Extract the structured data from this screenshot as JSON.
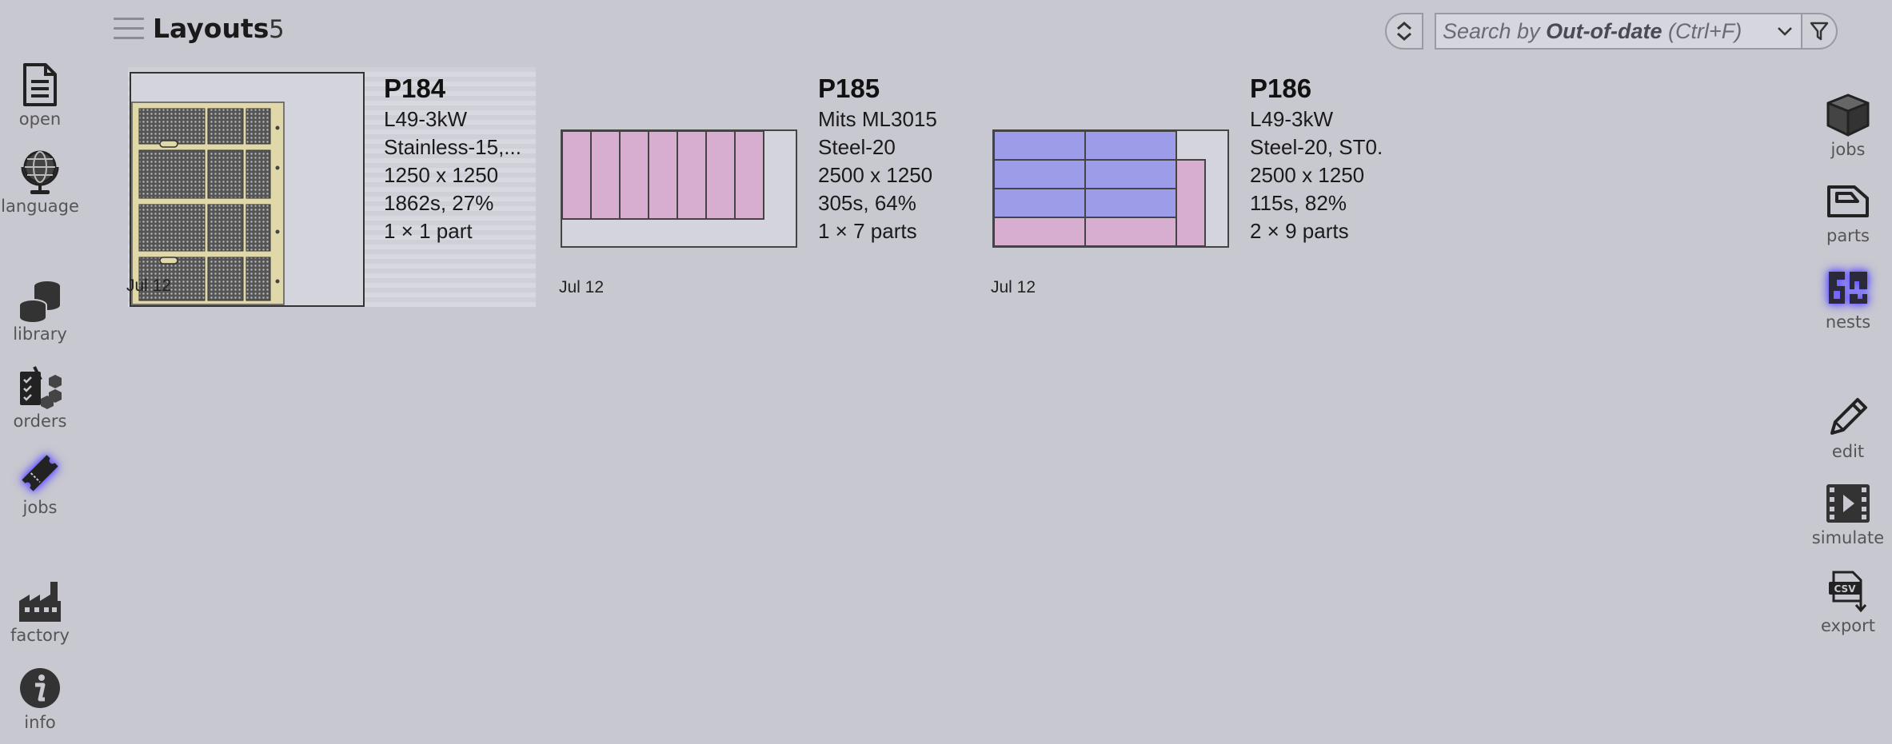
{
  "header": {
    "title": "Layouts",
    "count": "5",
    "search_prefix": "Search by ",
    "search_key": "Out-of-date",
    "search_suffix": " (Ctrl+F)"
  },
  "left_nav": [
    {
      "label": "open",
      "icon": "document-icon"
    },
    {
      "label": "language",
      "icon": "globe-icon"
    },
    {
      "label": "library",
      "icon": "coins-stack-icon"
    },
    {
      "label": "orders",
      "icon": "checklist-boxes-icon"
    },
    {
      "label": "jobs",
      "icon": "ticket-icon",
      "active": true
    },
    {
      "label": "factory",
      "icon": "factory-icon"
    },
    {
      "label": "info",
      "icon": "info-icon"
    }
  ],
  "right_nav": [
    {
      "label": "jobs",
      "icon": "box-icon"
    },
    {
      "label": "parts",
      "icon": "part-outline-icon"
    },
    {
      "label": "nests",
      "icon": "nests-icon",
      "active": true
    },
    {
      "label": "edit",
      "icon": "pencil-icon"
    },
    {
      "label": "simulate",
      "icon": "film-icon"
    },
    {
      "label": "export",
      "icon": "csv-export-icon"
    }
  ],
  "cards": [
    {
      "title": "P184",
      "machine": "L49-3kW",
      "material": "Stainless-15,...",
      "size": "1250 x 1250",
      "stats": "1862s, 27%",
      "parts": "1 × 1 part",
      "date": "Jul 12"
    },
    {
      "title": "P185",
      "machine": "Mits ML3015",
      "material": "Steel-20",
      "size": "2500 x 1250",
      "stats": "305s, 64%",
      "parts": "1 × 7 parts",
      "date": "Jul 12"
    },
    {
      "title": "P186",
      "machine": "L49-3kW",
      "material": "Steel-20, ST0.",
      "size": "2500 x 1250",
      "stats": "115s, 82%",
      "parts": "2 × 9 parts",
      "date": "Jul 12"
    }
  ],
  "colors": {
    "background": "#c8c8d0",
    "sheet": "#d4d4dc",
    "part_pink": "#d8aed0",
    "part_blue": "#9c9ce8",
    "part_tan": "#e0d8a8",
    "active_glow": "#6a5cff"
  }
}
